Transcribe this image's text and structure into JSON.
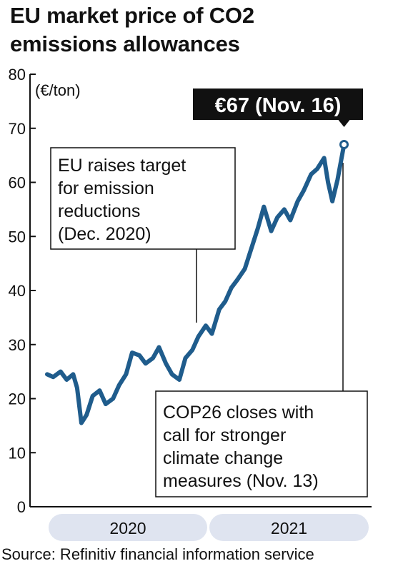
{
  "title_lines": [
    "EU market price of CO2",
    "emissions allowances"
  ],
  "source": "Source: Refinitiv financial information service",
  "colors": {
    "line": "#1f5c8c",
    "callout_bg": "#111111",
    "callout_text": "#ffffff",
    "year_band": "#dfe4f0"
  },
  "chart_data": {
    "type": "line",
    "title": "EU market price of CO2 emissions allowances",
    "ylabel": "(€/ton)",
    "ylim": [
      0,
      80
    ],
    "yticks": [
      "0",
      "10",
      "20",
      "30",
      "40",
      "50",
      "60",
      "70",
      "80"
    ],
    "x_period": [
      "2020-01",
      "2021-11"
    ],
    "x_bands": [
      "2020",
      "2021"
    ],
    "grid": false,
    "series": [
      {
        "values": [
          [
            "2020-01",
            24.5
          ],
          [
            "2020-01-15",
            24.0
          ],
          [
            "2020-02-01",
            25.0
          ],
          [
            "2020-02-15",
            23.5
          ],
          [
            "2020-03-01",
            24.5
          ],
          [
            "2020-03-10",
            22.0
          ],
          [
            "2020-03-20",
            15.5
          ],
          [
            "2020-04-01",
            17.0
          ],
          [
            "2020-04-15",
            20.5
          ],
          [
            "2020-05-01",
            21.5
          ],
          [
            "2020-05-15",
            19.0
          ],
          [
            "2020-06-01",
            20.0
          ],
          [
            "2020-06-15",
            22.5
          ],
          [
            "2020-07-01",
            24.5
          ],
          [
            "2020-07-15",
            28.5
          ],
          [
            "2020-08-01",
            28.0
          ],
          [
            "2020-08-15",
            26.5
          ],
          [
            "2020-09-01",
            27.5
          ],
          [
            "2020-09-15",
            29.5
          ],
          [
            "2020-10-01",
            26.5
          ],
          [
            "2020-10-15",
            24.5
          ],
          [
            "2020-11-01",
            23.5
          ],
          [
            "2020-11-15",
            27.5
          ],
          [
            "2020-12-01",
            29.0
          ],
          [
            "2020-12-15",
            31.5
          ],
          [
            "2021-01-01",
            33.5
          ],
          [
            "2021-01-15",
            32.0
          ],
          [
            "2021-02-01",
            36.5
          ],
          [
            "2021-02-15",
            38.0
          ],
          [
            "2021-03-01",
            40.5
          ],
          [
            "2021-03-15",
            42.0
          ],
          [
            "2021-04-01",
            44.0
          ],
          [
            "2021-04-15",
            47.5
          ],
          [
            "2021-05-01",
            51.5
          ],
          [
            "2021-05-15",
            55.5
          ],
          [
            "2021-06-01",
            51.0
          ],
          [
            "2021-06-15",
            53.5
          ],
          [
            "2021-07-01",
            55.0
          ],
          [
            "2021-07-15",
            53.0
          ],
          [
            "2021-08-01",
            56.5
          ],
          [
            "2021-08-15",
            58.5
          ],
          [
            "2021-09-01",
            61.5
          ],
          [
            "2021-09-15",
            62.5
          ],
          [
            "2021-10-01",
            64.5
          ],
          [
            "2021-10-10",
            60.0
          ],
          [
            "2021-10-20",
            56.5
          ],
          [
            "2021-11-01",
            60.5
          ],
          [
            "2021-11-16",
            67.0
          ]
        ]
      }
    ],
    "annotations": [
      {
        "text_lines": [
          "EU raises target",
          "for emission",
          "reductions",
          "(Dec. 2020)"
        ],
        "x": "2020-12-10"
      },
      {
        "text_lines": [
          "COP26 closes with",
          "call for stronger",
          "climate change",
          "measures (Nov. 13)"
        ],
        "x": "2021-11-13"
      }
    ],
    "callout": {
      "text": "€67 (Nov. 16)",
      "x": "2021-11-16",
      "y": 67
    }
  }
}
